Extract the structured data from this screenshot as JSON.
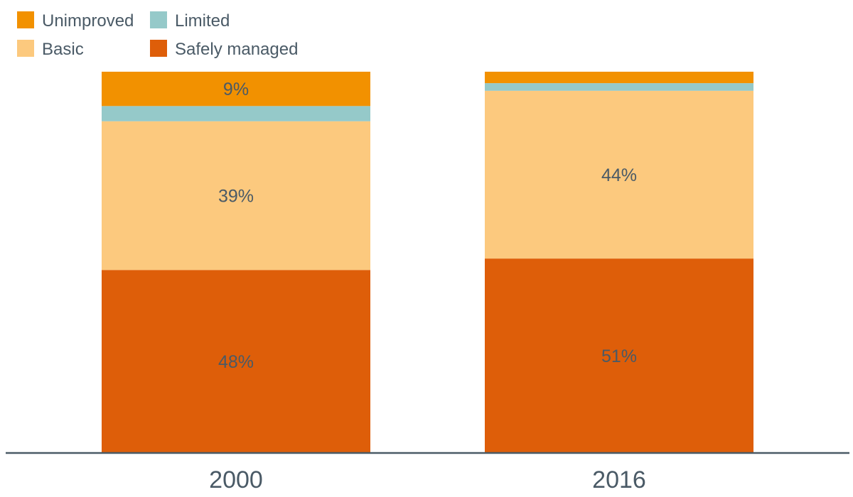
{
  "chart_data": {
    "type": "bar",
    "stacked": true,
    "categories": [
      "2000",
      "2016"
    ],
    "series": [
      {
        "name": "Safely managed",
        "color": "#de5e09",
        "values": [
          48,
          51
        ],
        "labels": [
          "48%",
          "51%"
        ]
      },
      {
        "name": "Basic",
        "color": "#fcc97e",
        "values": [
          39,
          44
        ],
        "labels": [
          "39%",
          "44%"
        ]
      },
      {
        "name": "Limited",
        "color": "#95c9c9",
        "values": [
          4,
          2
        ],
        "labels": [
          "",
          ""
        ]
      },
      {
        "name": "Unimproved",
        "color": "#f29100",
        "values": [
          9,
          3
        ],
        "labels": [
          "9%",
          ""
        ]
      }
    ],
    "ylim": [
      0,
      100
    ],
    "grid": false,
    "legend_position": "top-left",
    "legend_order": [
      "Unimproved",
      "Limited",
      "Basic",
      "Safely managed"
    ],
    "axis_color": "#4a5a66",
    "text_color": "#4a5a66"
  }
}
